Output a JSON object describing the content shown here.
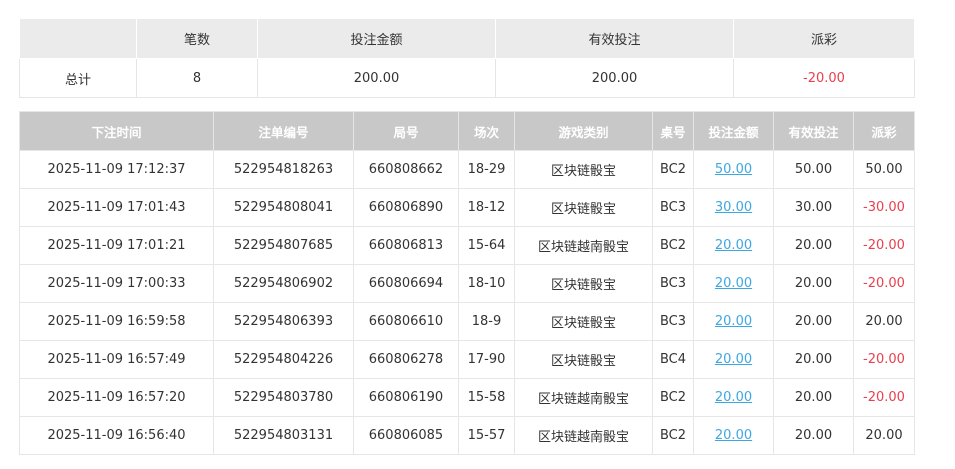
{
  "summary": {
    "headers": [
      "",
      "笔数",
      "投注金额",
      "有效投注",
      "派彩"
    ],
    "label": "总计",
    "count": "8",
    "bet": "200.00",
    "valid": "200.00",
    "payout": "-20.00"
  },
  "detail": {
    "headers": [
      "下注时间",
      "注单编号",
      "局号",
      "场次",
      "游戏类别",
      "桌号",
      "投注金额",
      "有效投注",
      "派彩"
    ],
    "rows": [
      [
        "2025-11-09 17:12:37",
        "522954818263",
        "660808662",
        "18-29",
        "区块链骰宝",
        "BC2",
        "50.00",
        "50.00",
        "50.00"
      ],
      [
        "2025-11-09 17:01:43",
        "522954808041",
        "660806890",
        "18-12",
        "区块链骰宝",
        "BC3",
        "30.00",
        "30.00",
        "-30.00"
      ],
      [
        "2025-11-09 17:01:21",
        "522954807685",
        "660806813",
        "15-64",
        "区块链越南骰宝",
        "BC2",
        "20.00",
        "20.00",
        "-20.00"
      ],
      [
        "2025-11-09 17:00:33",
        "522954806902",
        "660806694",
        "18-10",
        "区块链骰宝",
        "BC3",
        "20.00",
        "20.00",
        "-20.00"
      ],
      [
        "2025-11-09 16:59:58",
        "522954806393",
        "660806610",
        "18-9",
        "区块链骰宝",
        "BC3",
        "20.00",
        "20.00",
        "20.00"
      ],
      [
        "2025-11-09 16:57:49",
        "522954804226",
        "660806278",
        "17-90",
        "区块链骰宝",
        "BC4",
        "20.00",
        "20.00",
        "-20.00"
      ],
      [
        "2025-11-09 16:57:20",
        "522954803780",
        "660806190",
        "15-58",
        "区块链越南骰宝",
        "BC2",
        "20.00",
        "20.00",
        "-20.00"
      ],
      [
        "2025-11-09 16:56:40",
        "522954803131",
        "660806085",
        "15-57",
        "区块链越南骰宝",
        "BC2",
        "20.00",
        "20.00",
        "20.00"
      ]
    ]
  },
  "colors": {
    "negative": "#e8404f",
    "link": "#3ea7e0",
    "header": "#c8c8c8"
  }
}
